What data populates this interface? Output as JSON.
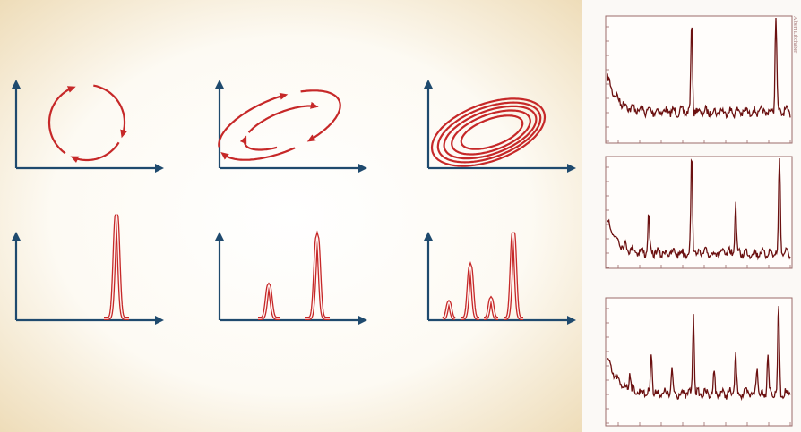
{
  "credit": "Albert Libchaber"
}
